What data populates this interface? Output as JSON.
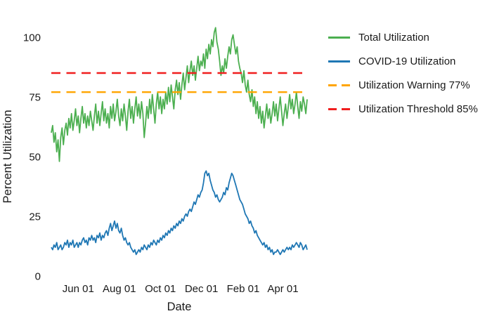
{
  "chart_data": {
    "type": "line",
    "title": "",
    "xlabel": "Date",
    "ylabel": "Percent Utilization",
    "ylim": [
      0,
      107
    ],
    "grid": false,
    "legend_position": "right",
    "x_domain_days": [
      0,
      380
    ],
    "x_ticks": {
      "labels": [
        "Jun 01",
        "Aug 01",
        "Oct 01",
        "Dec 01",
        "Feb 01",
        "Apr 01"
      ],
      "days": [
        40,
        101,
        162,
        223,
        285,
        344
      ]
    },
    "y_ticks": [
      0,
      25,
      50,
      75,
      100
    ],
    "series": [
      {
        "name": "Total Utilization",
        "color": "#4CAF50",
        "style": "solid",
        "values": [
          60,
          63,
          56,
          60,
          52,
          57,
          48,
          58,
          62,
          55,
          61,
          64,
          59,
          66,
          62,
          68,
          61,
          65,
          70,
          63,
          67,
          60,
          66,
          71,
          64,
          68,
          62,
          67,
          63,
          69,
          65,
          61,
          67,
          72,
          64,
          69,
          63,
          68,
          73,
          65,
          70,
          64,
          68,
          62,
          71,
          66,
          72,
          65,
          69,
          74,
          67,
          63,
          70,
          65,
          72,
          67,
          61,
          69,
          74,
          66,
          71,
          64,
          70,
          75,
          67,
          72,
          66,
          73,
          68,
          58,
          64,
          71,
          66,
          74,
          68,
          76,
          70,
          64,
          72,
          77,
          70,
          75,
          68,
          74,
          70,
          77,
          72,
          79,
          73,
          80,
          75,
          70,
          78,
          82,
          76,
          81,
          74,
          80,
          85,
          78,
          83,
          88,
          81,
          86,
          90,
          84,
          88,
          82,
          87,
          92,
          86,
          90,
          88,
          93,
          87,
          95,
          91,
          97,
          93,
          99,
          96,
          102,
          104,
          98,
          95,
          90,
          84,
          88,
          85,
          91,
          87,
          92,
          96,
          93,
          99,
          101,
          97,
          93,
          96,
          90,
          87,
          85,
          81,
          86,
          80,
          77,
          82,
          76,
          73,
          78,
          71,
          75,
          68,
          73,
          66,
          71,
          64,
          69,
          62,
          67,
          72,
          66,
          70,
          64,
          68,
          73,
          67,
          72,
          65,
          70,
          75,
          69,
          63,
          68,
          72,
          66,
          71,
          76,
          70,
          74,
          68,
          72,
          77,
          71,
          66,
          73,
          69,
          75,
          72,
          68,
          74
        ]
      },
      {
        "name": "COVID-19 Utilization",
        "color": "#1F77B4",
        "style": "solid",
        "values": [
          12,
          11,
          13,
          12,
          14,
          11,
          12,
          13,
          11,
          12,
          14,
          13,
          15,
          12,
          14,
          13,
          15,
          12,
          13,
          14,
          12,
          14,
          13,
          15,
          16,
          14,
          15,
          13,
          16,
          15,
          17,
          15,
          16,
          14,
          17,
          16,
          18,
          15,
          17,
          16,
          18,
          19,
          17,
          20,
          22,
          19,
          21,
          23,
          20,
          22,
          19,
          18,
          20,
          17,
          15,
          16,
          14,
          13,
          14,
          12,
          11,
          10,
          11,
          9,
          10,
          11,
          10,
          12,
          11,
          13,
          12,
          11,
          13,
          12,
          14,
          13,
          15,
          14,
          13,
          15,
          14,
          16,
          15,
          17,
          16,
          18,
          17,
          19,
          18,
          20,
          19,
          21,
          20,
          22,
          21,
          23,
          22,
          24,
          23,
          25,
          26,
          25,
          27,
          28,
          27,
          29,
          31,
          30,
          32,
          34,
          33,
          35,
          36,
          39,
          43,
          44,
          42,
          43,
          40,
          38,
          36,
          35,
          33,
          34,
          32,
          31,
          32,
          33,
          35,
          34,
          37,
          36,
          39,
          41,
          43,
          42,
          40,
          38,
          36,
          34,
          32,
          31,
          30,
          28,
          26,
          25,
          24,
          22,
          23,
          21,
          20,
          18,
          19,
          17,
          16,
          15,
          14,
          13,
          14,
          12,
          13,
          11,
          12,
          10,
          11,
          9,
          10,
          10,
          11,
          10,
          9,
          10,
          11,
          10,
          11,
          12,
          11,
          12,
          11,
          13,
          12,
          13,
          14,
          13,
          12,
          14,
          13,
          11,
          12,
          13,
          11
        ]
      }
    ],
    "reference_lines": [
      {
        "name": "Utilization Warning 77%",
        "value": 77,
        "color": "#FFA500",
        "style": "dashed"
      },
      {
        "name": "Utilization Threshold 85%",
        "value": 85,
        "color": "#F01E1E",
        "style": "dashed"
      }
    ]
  },
  "axes": {
    "x_title": "Date",
    "y_title": "Percent Utilization"
  },
  "legend": {
    "entries": [
      {
        "label": "Total Utilization",
        "color": "#4CAF50",
        "style": "solid"
      },
      {
        "label": "COVID-19 Utilization",
        "color": "#1F77B4",
        "style": "solid"
      },
      {
        "label": "Utilization Warning 77%",
        "color": "#FFA500",
        "style": "dashed"
      },
      {
        "label": "Utilization Threshold 85%",
        "color": "#F01E1E",
        "style": "dashed"
      }
    ]
  }
}
